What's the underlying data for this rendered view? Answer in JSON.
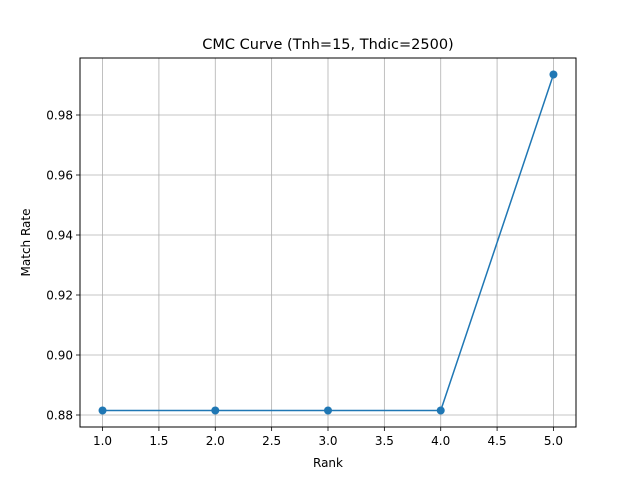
{
  "chart_data": {
    "type": "line",
    "title": "CMC Curve (Tnh=15, Thdic=2500)",
    "xlabel": "Rank",
    "ylabel": "Match Rate",
    "x": [
      1,
      2,
      3,
      4,
      5
    ],
    "series": [
      {
        "values": [
          0.8815,
          0.8815,
          0.8815,
          0.8815,
          0.9935
        ],
        "color": "#1f77b4",
        "marker": "circle"
      }
    ],
    "xlim": [
      0.8,
      5.2
    ],
    "ylim": [
      0.876,
      0.999
    ],
    "xticks": [
      "1.0",
      "1.5",
      "2.0",
      "2.5",
      "3.0",
      "3.5",
      "4.0",
      "4.5",
      "5.0"
    ],
    "yticks": [
      "0.88",
      "0.90",
      "0.92",
      "0.94",
      "0.96",
      "0.98"
    ],
    "grid": true,
    "legend": "none"
  }
}
